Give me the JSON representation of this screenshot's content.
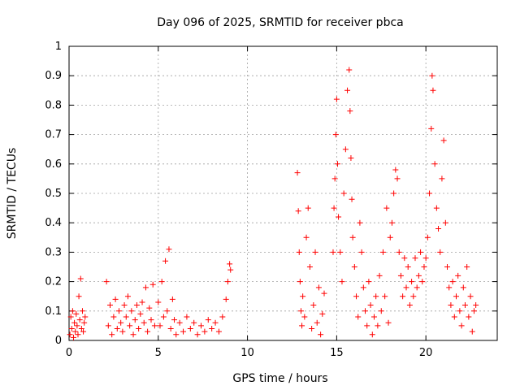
{
  "chart_data": {
    "type": "scatter",
    "title": "Day 096 of 2025, SRMTID for receiver pbca",
    "xlabel": "GPS time / hours",
    "ylabel": "SRMTID / TECUs",
    "xlim": [
      0,
      24
    ],
    "ylim": [
      0,
      1
    ],
    "xticks": [
      0,
      5,
      10,
      15,
      20
    ],
    "xtick_labels": [
      "0",
      "5",
      "10",
      "15",
      "20"
    ],
    "yticks": [
      0,
      0.1,
      0.2,
      0.3,
      0.4,
      0.5,
      0.6,
      0.7,
      0.8,
      0.9,
      1
    ],
    "ytick_labels": [
      "0",
      "0.1",
      "0.2",
      "0.3",
      "0.4",
      "0.5",
      "0.6",
      "0.7",
      "0.8",
      "0.9",
      "1"
    ],
    "grid": true,
    "marker": "+",
    "marker_color": "#ff0000",
    "series": [
      {
        "name": "SRMTID",
        "points": [
          [
            0.05,
            0.02
          ],
          [
            0.1,
            0.08
          ],
          [
            0.15,
            0.04
          ],
          [
            0.2,
            0.1
          ],
          [
            0.25,
            0.01
          ],
          [
            0.3,
            0.06
          ],
          [
            0.35,
            0.03
          ],
          [
            0.4,
            0.09
          ],
          [
            0.45,
            0.05
          ],
          [
            0.5,
            0.02
          ],
          [
            0.55,
            0.15
          ],
          [
            0.6,
            0.07
          ],
          [
            0.65,
            0.21
          ],
          [
            0.7,
            0.04
          ],
          [
            0.75,
            0.1
          ],
          [
            0.8,
            0.03
          ],
          [
            0.85,
            0.06
          ],
          [
            0.9,
            0.08
          ],
          [
            2.1,
            0.2
          ],
          [
            2.2,
            0.05
          ],
          [
            2.3,
            0.12
          ],
          [
            2.4,
            0.02
          ],
          [
            2.5,
            0.08
          ],
          [
            2.6,
            0.14
          ],
          [
            2.7,
            0.04
          ],
          [
            2.8,
            0.1
          ],
          [
            2.9,
            0.06
          ],
          [
            3.0,
            0.03
          ],
          [
            3.1,
            0.12
          ],
          [
            3.2,
            0.08
          ],
          [
            3.3,
            0.15
          ],
          [
            3.4,
            0.05
          ],
          [
            3.5,
            0.1
          ],
          [
            3.6,
            0.02
          ],
          [
            3.7,
            0.07
          ],
          [
            3.8,
            0.12
          ],
          [
            3.9,
            0.04
          ],
          [
            4.0,
            0.09
          ],
          [
            4.1,
            0.13
          ],
          [
            4.2,
            0.06
          ],
          [
            4.3,
            0.18
          ],
          [
            4.4,
            0.03
          ],
          [
            4.5,
            0.11
          ],
          [
            4.6,
            0.07
          ],
          [
            4.7,
            0.19
          ],
          [
            4.8,
            0.05
          ],
          [
            5.0,
            0.13
          ],
          [
            5.1,
            0.05
          ],
          [
            5.2,
            0.2
          ],
          [
            5.3,
            0.08
          ],
          [
            5.4,
            0.27
          ],
          [
            5.5,
            0.1
          ],
          [
            5.6,
            0.31
          ],
          [
            5.7,
            0.04
          ],
          [
            5.8,
            0.14
          ],
          [
            5.9,
            0.07
          ],
          [
            6.0,
            0.02
          ],
          [
            6.2,
            0.06
          ],
          [
            6.4,
            0.03
          ],
          [
            6.6,
            0.08
          ],
          [
            6.8,
            0.04
          ],
          [
            7.0,
            0.06
          ],
          [
            7.2,
            0.02
          ],
          [
            7.4,
            0.05
          ],
          [
            7.6,
            0.03
          ],
          [
            7.8,
            0.07
          ],
          [
            8.0,
            0.04
          ],
          [
            8.2,
            0.06
          ],
          [
            8.4,
            0.03
          ],
          [
            8.6,
            0.08
          ],
          [
            8.8,
            0.14
          ],
          [
            8.9,
            0.2
          ],
          [
            9.0,
            0.26
          ],
          [
            9.05,
            0.24
          ],
          [
            12.8,
            0.57
          ],
          [
            12.85,
            0.44
          ],
          [
            12.9,
            0.3
          ],
          [
            12.95,
            0.2
          ],
          [
            13.0,
            0.1
          ],
          [
            13.05,
            0.05
          ],
          [
            13.1,
            0.15
          ],
          [
            13.2,
            0.08
          ],
          [
            13.3,
            0.35
          ],
          [
            13.4,
            0.45
          ],
          [
            13.5,
            0.25
          ],
          [
            13.6,
            0.04
          ],
          [
            13.7,
            0.12
          ],
          [
            13.8,
            0.3
          ],
          [
            13.9,
            0.06
          ],
          [
            14.0,
            0.18
          ],
          [
            14.1,
            0.02
          ],
          [
            14.2,
            0.09
          ],
          [
            14.3,
            0.16
          ],
          [
            14.8,
            0.3
          ],
          [
            14.85,
            0.45
          ],
          [
            14.9,
            0.55
          ],
          [
            14.95,
            0.7
          ],
          [
            15.0,
            0.82
          ],
          [
            15.05,
            0.6
          ],
          [
            15.1,
            0.42
          ],
          [
            15.2,
            0.3
          ],
          [
            15.3,
            0.2
          ],
          [
            15.4,
            0.5
          ],
          [
            15.5,
            0.65
          ],
          [
            15.6,
            0.85
          ],
          [
            15.7,
            0.92
          ],
          [
            15.75,
            0.78
          ],
          [
            15.8,
            0.62
          ],
          [
            15.85,
            0.48
          ],
          [
            15.9,
            0.35
          ],
          [
            16.0,
            0.25
          ],
          [
            16.1,
            0.15
          ],
          [
            16.2,
            0.08
          ],
          [
            16.3,
            0.4
          ],
          [
            16.4,
            0.3
          ],
          [
            16.5,
            0.18
          ],
          [
            16.6,
            0.1
          ],
          [
            16.7,
            0.05
          ],
          [
            16.8,
            0.2
          ],
          [
            16.9,
            0.12
          ],
          [
            17.0,
            0.02
          ],
          [
            17.1,
            0.08
          ],
          [
            17.2,
            0.15
          ],
          [
            17.3,
            0.05
          ],
          [
            17.4,
            0.22
          ],
          [
            17.5,
            0.1
          ],
          [
            17.6,
            0.3
          ],
          [
            17.7,
            0.15
          ],
          [
            17.8,
            0.45
          ],
          [
            17.9,
            0.06
          ],
          [
            18.0,
            0.35
          ],
          [
            18.1,
            0.4
          ],
          [
            18.2,
            0.5
          ],
          [
            18.3,
            0.58
          ],
          [
            18.4,
            0.55
          ],
          [
            18.5,
            0.3
          ],
          [
            18.6,
            0.22
          ],
          [
            18.7,
            0.15
          ],
          [
            18.8,
            0.28
          ],
          [
            18.9,
            0.18
          ],
          [
            19.0,
            0.25
          ],
          [
            19.1,
            0.12
          ],
          [
            19.2,
            0.2
          ],
          [
            19.3,
            0.15
          ],
          [
            19.4,
            0.28
          ],
          [
            19.5,
            0.18
          ],
          [
            19.6,
            0.22
          ],
          [
            19.7,
            0.3
          ],
          [
            19.8,
            0.2
          ],
          [
            19.9,
            0.25
          ],
          [
            20.0,
            0.28
          ],
          [
            20.1,
            0.35
          ],
          [
            20.2,
            0.5
          ],
          [
            20.3,
            0.72
          ],
          [
            20.35,
            0.9
          ],
          [
            20.4,
            0.85
          ],
          [
            20.5,
            0.6
          ],
          [
            20.6,
            0.45
          ],
          [
            20.7,
            0.38
          ],
          [
            20.8,
            0.3
          ],
          [
            20.9,
            0.55
          ],
          [
            21.0,
            0.68
          ],
          [
            21.1,
            0.4
          ],
          [
            21.2,
            0.25
          ],
          [
            21.3,
            0.18
          ],
          [
            21.4,
            0.12
          ],
          [
            21.5,
            0.2
          ],
          [
            21.6,
            0.08
          ],
          [
            21.7,
            0.15
          ],
          [
            21.8,
            0.22
          ],
          [
            21.9,
            0.1
          ],
          [
            22.0,
            0.05
          ],
          [
            22.1,
            0.18
          ],
          [
            22.2,
            0.12
          ],
          [
            22.3,
            0.25
          ],
          [
            22.4,
            0.08
          ],
          [
            22.5,
            0.15
          ],
          [
            22.6,
            0.03
          ],
          [
            22.7,
            0.1
          ],
          [
            22.8,
            0.12
          ]
        ]
      }
    ]
  }
}
